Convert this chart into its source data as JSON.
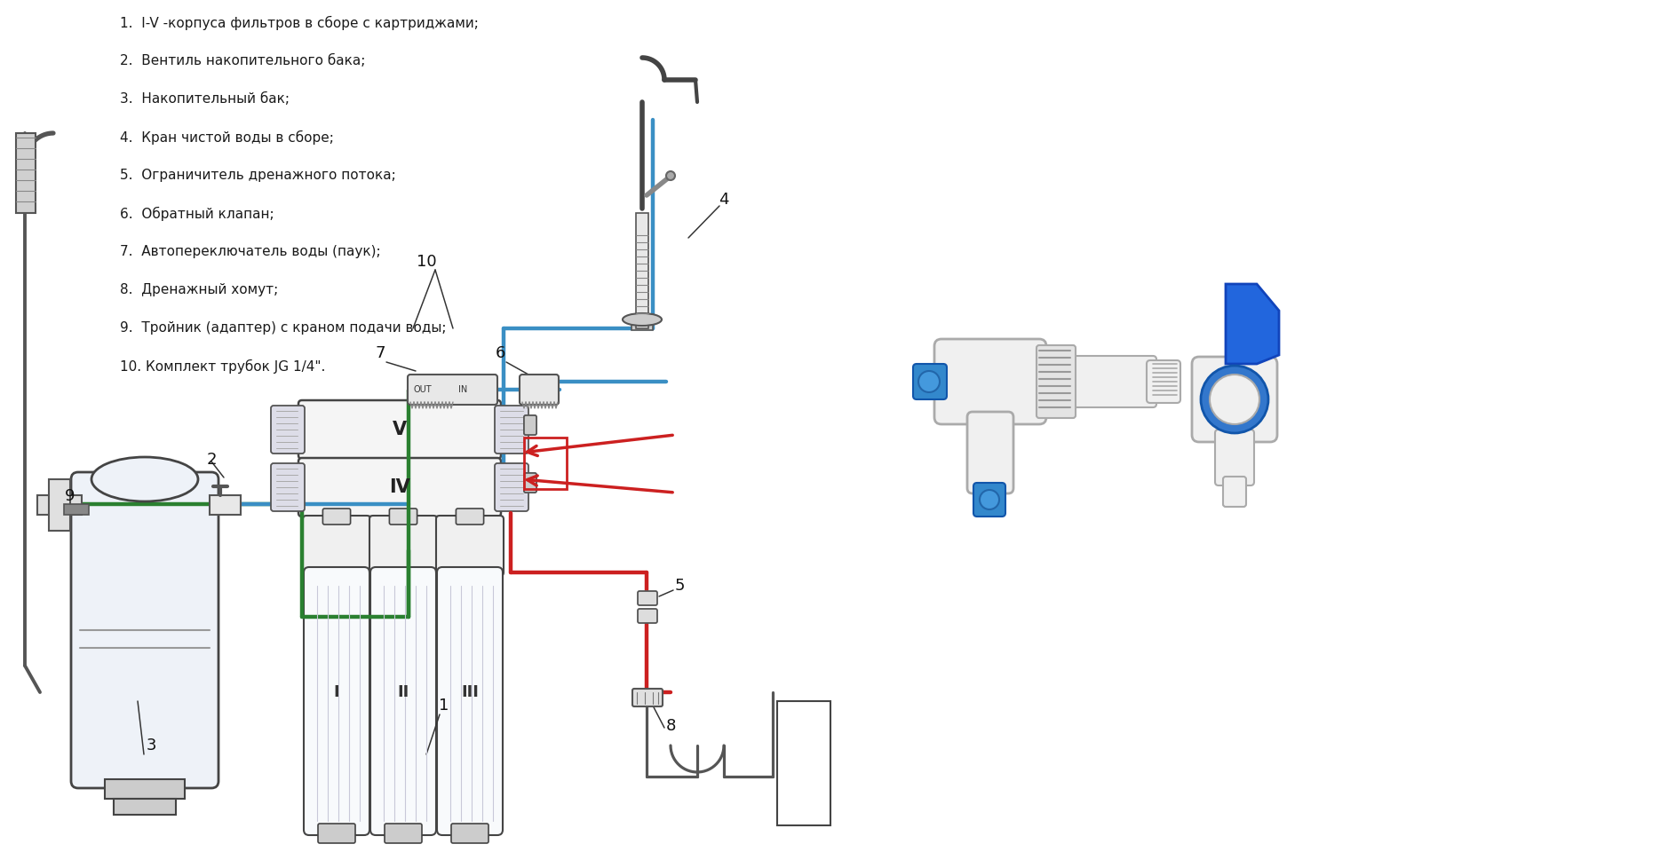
{
  "background_color": "#ffffff",
  "figsize": [
    18.87,
    9.6
  ],
  "dpi": 100,
  "legend_items": [
    "1.  I-V -корпуса фильтров в сборе с картриджами;",
    "2.  Вентиль накопительного бака;",
    "3.  Накопительный бак;",
    "4.  Кран чистой воды в сборе;",
    "5.  Ограничитель дренажного потока;",
    "6.  Обратный клапан;",
    "7.  Автопереключатель воды (паук);",
    "8.  Дренажный хомут;",
    "9.  Тройник (адаптер) с краном подачи воды;",
    "10. Комплект трубок JG 1/4\"."
  ],
  "text_color": "#1a1a1a",
  "pipe_blue": "#3a8fc4",
  "pipe_red": "#cc2020",
  "pipe_green": "#2a8030",
  "pipe_gray": "#555555",
  "lw_pipe": 3.2,
  "lw_thin": 1.8,
  "lw_connector": 1.0
}
